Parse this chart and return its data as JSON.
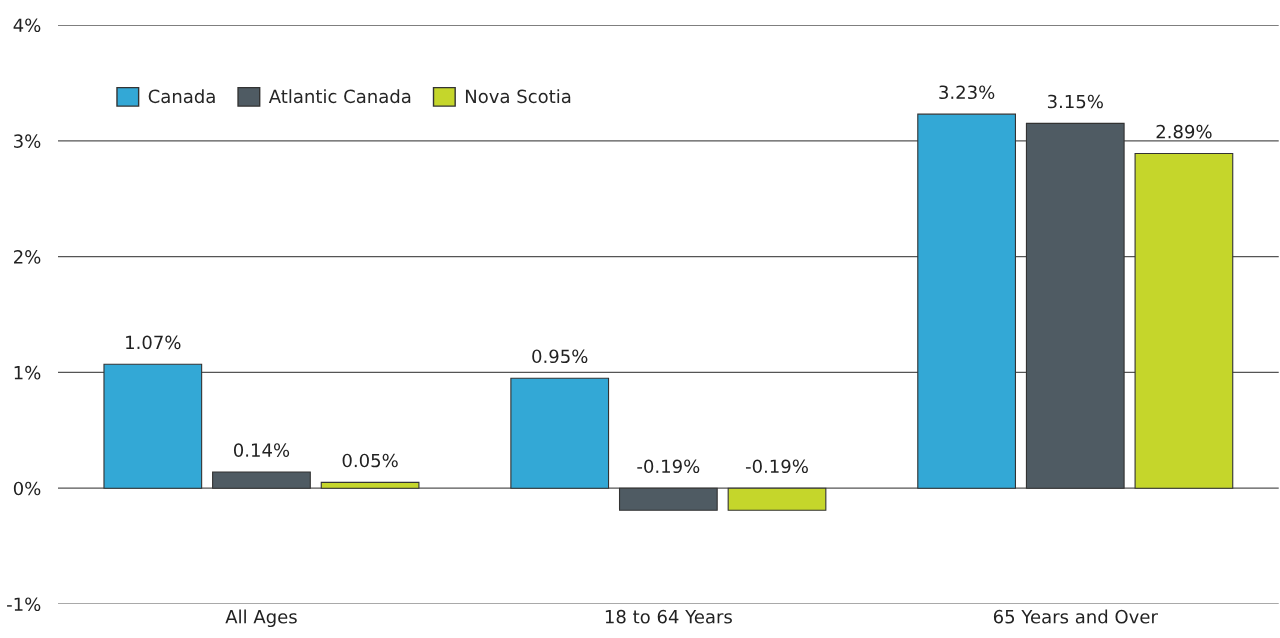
{
  "chart_data": {
    "type": "bar",
    "categories": [
      "All Ages",
      "18 to 64 Years",
      "65 Years and Over"
    ],
    "series": [
      {
        "name": "Canada",
        "color": "#33a8d6",
        "values": [
          1.07,
          0.95,
          3.23
        ],
        "value_labels": [
          "1.07%",
          "0.95%",
          "3.23%"
        ]
      },
      {
        "name": "Atlantic Canada",
        "color": "#4f5b63",
        "values": [
          0.14,
          -0.19,
          3.15
        ],
        "value_labels": [
          "0.14%",
          "-0.19%",
          "3.15%"
        ]
      },
      {
        "name": "Nova Scotia",
        "color": "#c5d62b",
        "values": [
          0.05,
          -0.19,
          2.89
        ],
        "value_labels": [
          "0.05%",
          "-0.19%",
          "2.89%"
        ]
      }
    ],
    "ylim": [
      -1,
      4
    ],
    "yticks": [
      {
        "value": -1,
        "label": "-1%"
      },
      {
        "value": 0,
        "label": "0%"
      },
      {
        "value": 1,
        "label": "1%"
      },
      {
        "value": 2,
        "label": "2%"
      },
      {
        "value": 3,
        "label": "3%"
      },
      {
        "value": 4,
        "label": "4%"
      }
    ],
    "grid": "y",
    "legend": "top left"
  }
}
